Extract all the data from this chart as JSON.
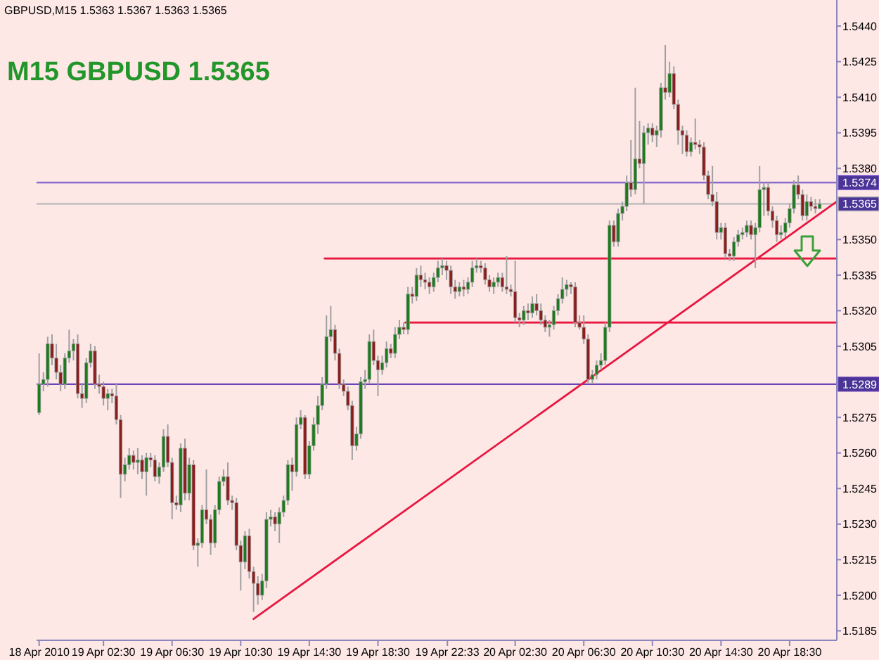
{
  "chart_data": {
    "type": "candlestick",
    "title": "M15 GBPUSD 1.5365",
    "subtitle": "GBPUSD,M15 1.5363 1.5367 1.5363 1.5365",
    "x": [
      "2010-04-18T22:45",
      "2010-04-18T23:00",
      "2010-04-18T23:15",
      "2010-04-18T23:30",
      "2010-04-18T23:45",
      "2010-04-19T00:00",
      "2010-04-19T00:15",
      "2010-04-19T00:30",
      "2010-04-19T00:45",
      "2010-04-19T01:00",
      "2010-04-19T01:15",
      "2010-04-19T01:30",
      "2010-04-19T01:45",
      "2010-04-19T02:00",
      "2010-04-19T02:15",
      "2010-04-19T02:30",
      "2010-04-19T02:45",
      "2010-04-19T03:00",
      "2010-04-19T03:15",
      "2010-04-19T03:30",
      "2010-04-19T03:45",
      "2010-04-19T04:00",
      "2010-04-19T04:15",
      "2010-04-19T04:30",
      "2010-04-19T04:45",
      "2010-04-19T05:00",
      "2010-04-19T05:15",
      "2010-04-19T05:30",
      "2010-04-19T05:45",
      "2010-04-19T06:00",
      "2010-04-19T06:15",
      "2010-04-19T06:30",
      "2010-04-19T06:45",
      "2010-04-19T07:00",
      "2010-04-19T07:15",
      "2010-04-19T07:30",
      "2010-04-19T07:45",
      "2010-04-19T08:00",
      "2010-04-19T08:15",
      "2010-04-19T08:30",
      "2010-04-19T08:45",
      "2010-04-19T09:00",
      "2010-04-19T09:15",
      "2010-04-19T09:30",
      "2010-04-19T09:45",
      "2010-04-19T10:00",
      "2010-04-19T10:15",
      "2010-04-19T10:30",
      "2010-04-19T10:45",
      "2010-04-19T11:00",
      "2010-04-19T11:15",
      "2010-04-19T11:30",
      "2010-04-19T11:45",
      "2010-04-19T12:00",
      "2010-04-19T12:15",
      "2010-04-19T12:30",
      "2010-04-19T12:45",
      "2010-04-19T13:00",
      "2010-04-19T13:15",
      "2010-04-19T13:30",
      "2010-04-19T13:45",
      "2010-04-19T14:00",
      "2010-04-19T14:15",
      "2010-04-19T14:30",
      "2010-04-19T14:45",
      "2010-04-19T15:00",
      "2010-04-19T15:15",
      "2010-04-19T15:30",
      "2010-04-19T15:45",
      "2010-04-19T16:00",
      "2010-04-19T16:15",
      "2010-04-19T16:30",
      "2010-04-19T16:45",
      "2010-04-19T17:00",
      "2010-04-19T17:15",
      "2010-04-19T17:30",
      "2010-04-19T17:45",
      "2010-04-19T18:00",
      "2010-04-19T18:15",
      "2010-04-19T18:30",
      "2010-04-19T18:45",
      "2010-04-19T19:00",
      "2010-04-19T19:15",
      "2010-04-19T19:30",
      "2010-04-19T19:45",
      "2010-04-19T20:00",
      "2010-04-19T20:15",
      "2010-04-19T20:30",
      "2010-04-19T20:45",
      "2010-04-19T21:00",
      "2010-04-19T21:15",
      "2010-04-19T21:30",
      "2010-04-19T21:45",
      "2010-04-19T22:00",
      "2010-04-19T22:15",
      "2010-04-19T22:30",
      "2010-04-19T22:45",
      "2010-04-19T23:00",
      "2010-04-19T23:15",
      "2010-04-19T23:30",
      "2010-04-19T23:45",
      "2010-04-20T00:00",
      "2010-04-20T00:15",
      "2010-04-20T00:30",
      "2010-04-20T00:45",
      "2010-04-20T01:00",
      "2010-04-20T01:15",
      "2010-04-20T01:30",
      "2010-04-20T01:45",
      "2010-04-20T02:00",
      "2010-04-20T02:15",
      "2010-04-20T02:30",
      "2010-04-20T02:45",
      "2010-04-20T03:00",
      "2010-04-20T03:15",
      "2010-04-20T03:30",
      "2010-04-20T03:45",
      "2010-04-20T04:00",
      "2010-04-20T04:15",
      "2010-04-20T04:30",
      "2010-04-20T04:45",
      "2010-04-20T05:00",
      "2010-04-20T05:15",
      "2010-04-20T05:30",
      "2010-04-20T05:45",
      "2010-04-20T06:00",
      "2010-04-20T06:15",
      "2010-04-20T06:30",
      "2010-04-20T06:45",
      "2010-04-20T07:00",
      "2010-04-20T07:15",
      "2010-04-20T07:30",
      "2010-04-20T07:45",
      "2010-04-20T08:00",
      "2010-04-20T08:15",
      "2010-04-20T08:30",
      "2010-04-20T08:45",
      "2010-04-20T09:00",
      "2010-04-20T09:15",
      "2010-04-20T09:30",
      "2010-04-20T09:45",
      "2010-04-20T10:00",
      "2010-04-20T10:15",
      "2010-04-20T10:30",
      "2010-04-20T10:45",
      "2010-04-20T11:00",
      "2010-04-20T11:15",
      "2010-04-20T11:30",
      "2010-04-20T11:45",
      "2010-04-20T12:00",
      "2010-04-20T12:15",
      "2010-04-20T12:30",
      "2010-04-20T12:45",
      "2010-04-20T13:00",
      "2010-04-20T13:15",
      "2010-04-20T13:30",
      "2010-04-20T13:45",
      "2010-04-20T14:00",
      "2010-04-20T14:15",
      "2010-04-20T14:30",
      "2010-04-20T14:45",
      "2010-04-20T15:00",
      "2010-04-20T15:15",
      "2010-04-20T15:30",
      "2010-04-20T15:45",
      "2010-04-20T16:00",
      "2010-04-20T16:15",
      "2010-04-20T16:30",
      "2010-04-20T16:45",
      "2010-04-20T17:00",
      "2010-04-20T17:15",
      "2010-04-20T17:30",
      "2010-04-20T17:45",
      "2010-04-20T18:00",
      "2010-04-20T18:15",
      "2010-04-20T18:30",
      "2010-04-20T18:45",
      "2010-04-20T19:00",
      "2010-04-20T19:15",
      "2010-04-20T19:30",
      "2010-04-20T19:45",
      "2010-04-20T20:00",
      "2010-04-20T20:15"
    ],
    "ohlc": [
      [
        1.5277,
        1.5302,
        1.5276,
        1.5289
      ],
      [
        1.5289,
        1.5294,
        1.5286,
        1.5291
      ],
      [
        1.5291,
        1.5309,
        1.5288,
        1.5306
      ],
      [
        1.5306,
        1.531,
        1.5297,
        1.53
      ],
      [
        1.53,
        1.5306,
        1.5291,
        1.5294
      ],
      [
        1.5294,
        1.5297,
        1.5286,
        1.5289
      ],
      [
        1.5289,
        1.5302,
        1.5287,
        1.53
      ],
      [
        1.53,
        1.5312,
        1.5298,
        1.5303
      ],
      [
        1.5303,
        1.5308,
        1.5299,
        1.5306
      ],
      [
        1.5306,
        1.531,
        1.5283,
        1.5285
      ],
      [
        1.5285,
        1.5289,
        1.5279,
        1.5283
      ],
      [
        1.5283,
        1.53,
        1.5281,
        1.5298
      ],
      [
        1.5298,
        1.5306,
        1.5296,
        1.5303
      ],
      [
        1.5303,
        1.5305,
        1.5287,
        1.5289
      ],
      [
        1.5289,
        1.5293,
        1.5285,
        1.5288
      ],
      [
        1.5288,
        1.529,
        1.528,
        1.5283
      ],
      [
        1.5283,
        1.5287,
        1.5278,
        1.5285
      ],
      [
        1.5285,
        1.5287,
        1.5281,
        1.5284
      ],
      [
        1.5284,
        1.5289,
        1.5272,
        1.5274
      ],
      [
        1.5274,
        1.5276,
        1.5241,
        1.5251
      ],
      [
        1.5251,
        1.5258,
        1.5248,
        1.5255
      ],
      [
        1.5255,
        1.5262,
        1.5253,
        1.5259
      ],
      [
        1.5259,
        1.5261,
        1.5253,
        1.5256
      ],
      [
        1.5256,
        1.5262,
        1.5251,
        1.5257
      ],
      [
        1.5257,
        1.5259,
        1.5249,
        1.5252
      ],
      [
        1.5252,
        1.526,
        1.5242,
        1.5258
      ],
      [
        1.5258,
        1.526,
        1.5254,
        1.5257
      ],
      [
        1.5257,
        1.5259,
        1.5248,
        1.525
      ],
      [
        1.525,
        1.5256,
        1.5247,
        1.5254
      ],
      [
        1.5254,
        1.527,
        1.5252,
        1.5267
      ],
      [
        1.5267,
        1.5272,
        1.5254,
        1.5256
      ],
      [
        1.5256,
        1.5258,
        1.5232,
        1.5239
      ],
      [
        1.5239,
        1.5242,
        1.5236,
        1.5238
      ],
      [
        1.5238,
        1.5264,
        1.5235,
        1.5262
      ],
      [
        1.5262,
        1.5266,
        1.524,
        1.5243
      ],
      [
        1.5243,
        1.5258,
        1.524,
        1.5255
      ],
      [
        1.5255,
        1.5257,
        1.5219,
        1.5221
      ],
      [
        1.5221,
        1.5224,
        1.5212,
        1.5222
      ],
      [
        1.5222,
        1.5238,
        1.522,
        1.5236
      ],
      [
        1.5236,
        1.5253,
        1.523,
        1.5232
      ],
      [
        1.5232,
        1.5234,
        1.5217,
        1.5222
      ],
      [
        1.5222,
        1.5238,
        1.522,
        1.5236
      ],
      [
        1.5236,
        1.525,
        1.5234,
        1.5248
      ],
      [
        1.5248,
        1.5253,
        1.5246,
        1.525
      ],
      [
        1.525,
        1.5256,
        1.5238,
        1.524
      ],
      [
        1.524,
        1.5242,
        1.5236,
        1.5239
      ],
      [
        1.5239,
        1.5241,
        1.5219,
        1.5221
      ],
      [
        1.5221,
        1.5223,
        1.5202,
        1.5214
      ],
      [
        1.5214,
        1.5227,
        1.5211,
        1.5225
      ],
      [
        1.5225,
        1.5228,
        1.5207,
        1.521
      ],
      [
        1.521,
        1.5212,
        1.5193,
        1.5205
      ],
      [
        1.5205,
        1.5208,
        1.5196,
        1.52
      ],
      [
        1.52,
        1.5209,
        1.5198,
        1.5206
      ],
      [
        1.5206,
        1.5235,
        1.5203,
        1.5232
      ],
      [
        1.5232,
        1.5236,
        1.5229,
        1.5233
      ],
      [
        1.5233,
        1.5235,
        1.5227,
        1.523
      ],
      [
        1.523,
        1.5237,
        1.5222,
        1.5235
      ],
      [
        1.5235,
        1.5242,
        1.5233,
        1.524
      ],
      [
        1.524,
        1.5257,
        1.5238,
        1.5255
      ],
      [
        1.5255,
        1.5258,
        1.5244,
        1.5252
      ],
      [
        1.5252,
        1.5275,
        1.525,
        1.5272
      ],
      [
        1.5272,
        1.5278,
        1.527,
        1.5275
      ],
      [
        1.5275,
        1.5276,
        1.5249,
        1.5251
      ],
      [
        1.5251,
        1.5265,
        1.5249,
        1.5263
      ],
      [
        1.5263,
        1.5275,
        1.5261,
        1.5272
      ],
      [
        1.5272,
        1.5284,
        1.5268,
        1.528
      ],
      [
        1.528,
        1.5292,
        1.5278,
        1.5289
      ],
      [
        1.5289,
        1.5318,
        1.5287,
        1.5309
      ],
      [
        1.5309,
        1.5322,
        1.5307,
        1.5312
      ],
      [
        1.5312,
        1.5314,
        1.5299,
        1.5302
      ],
      [
        1.5302,
        1.5304,
        1.5287,
        1.5289
      ],
      [
        1.5289,
        1.5291,
        1.5284,
        1.5286
      ],
      [
        1.5286,
        1.5288,
        1.5278,
        1.528
      ],
      [
        1.528,
        1.5282,
        1.5257,
        1.5263
      ],
      [
        1.5263,
        1.5271,
        1.5261,
        1.5268
      ],
      [
        1.5268,
        1.5292,
        1.5266,
        1.529
      ],
      [
        1.529,
        1.5295,
        1.5287,
        1.5291
      ],
      [
        1.5291,
        1.531,
        1.5289,
        1.5307
      ],
      [
        1.5307,
        1.5312,
        1.5297,
        1.5299
      ],
      [
        1.5299,
        1.5301,
        1.5284,
        1.5295
      ],
      [
        1.5295,
        1.5301,
        1.5293,
        1.5298
      ],
      [
        1.5298,
        1.5307,
        1.5296,
        1.5304
      ],
      [
        1.5304,
        1.5306,
        1.53,
        1.5302
      ],
      [
        1.5302,
        1.5313,
        1.53,
        1.531
      ],
      [
        1.531,
        1.5316,
        1.5308,
        1.5313
      ],
      [
        1.5313,
        1.5315,
        1.531,
        1.5312
      ],
      [
        1.5312,
        1.533,
        1.531,
        1.5327
      ],
      [
        1.5327,
        1.533,
        1.5323,
        1.5326
      ],
      [
        1.5326,
        1.5338,
        1.5324,
        1.5335
      ],
      [
        1.5335,
        1.5339,
        1.533,
        1.5333
      ],
      [
        1.5333,
        1.5336,
        1.5329,
        1.5332
      ],
      [
        1.5332,
        1.5334,
        1.5327,
        1.533
      ],
      [
        1.533,
        1.5336,
        1.5328,
        1.5334
      ],
      [
        1.5334,
        1.5341,
        1.5332,
        1.5338
      ],
      [
        1.5338,
        1.5342,
        1.5335,
        1.5339
      ],
      [
        1.5339,
        1.5341,
        1.5333,
        1.5337
      ],
      [
        1.5337,
        1.5339,
        1.5327,
        1.533
      ],
      [
        1.533,
        1.5333,
        1.5325,
        1.5328
      ],
      [
        1.5328,
        1.5332,
        1.5326,
        1.533
      ],
      [
        1.533,
        1.5333,
        1.5326,
        1.5329
      ],
      [
        1.5329,
        1.5334,
        1.5327,
        1.5332
      ],
      [
        1.5332,
        1.5341,
        1.533,
        1.5338
      ],
      [
        1.5338,
        1.5342,
        1.5336,
        1.5339
      ],
      [
        1.5339,
        1.5341,
        1.5336,
        1.5338
      ],
      [
        1.5338,
        1.534,
        1.5331,
        1.5333
      ],
      [
        1.5333,
        1.5335,
        1.5328,
        1.533
      ],
      [
        1.533,
        1.5334,
        1.5327,
        1.5332
      ],
      [
        1.5332,
        1.5336,
        1.533,
        1.5334
      ],
      [
        1.5334,
        1.5336,
        1.5328,
        1.533
      ],
      [
        1.533,
        1.5343,
        1.5327,
        1.5329
      ],
      [
        1.5329,
        1.5331,
        1.5326,
        1.5328
      ],
      [
        1.5328,
        1.5341,
        1.5315,
        1.5317
      ],
      [
        1.5317,
        1.5319,
        1.5313,
        1.5316
      ],
      [
        1.5316,
        1.5322,
        1.5314,
        1.532
      ],
      [
        1.532,
        1.5323,
        1.5316,
        1.5319
      ],
      [
        1.5319,
        1.5326,
        1.5317,
        1.5323
      ],
      [
        1.5323,
        1.5327,
        1.5318,
        1.532
      ],
      [
        1.532,
        1.5323,
        1.5314,
        1.5316
      ],
      [
        1.5316,
        1.5318,
        1.5311,
        1.5313
      ],
      [
        1.5313,
        1.5316,
        1.5309,
        1.5314
      ],
      [
        1.5314,
        1.5322,
        1.5312,
        1.532
      ],
      [
        1.532,
        1.5327,
        1.5318,
        1.5325
      ],
      [
        1.5325,
        1.5334,
        1.5323,
        1.5329
      ],
      [
        1.5329,
        1.5333,
        1.5326,
        1.5331
      ],
      [
        1.5331,
        1.5332,
        1.5327,
        1.533
      ],
      [
        1.533,
        1.5332,
        1.5313,
        1.5315
      ],
      [
        1.5315,
        1.5318,
        1.5312,
        1.5313
      ],
      [
        1.5313,
        1.5318,
        1.5306,
        1.5308
      ],
      [
        1.5308,
        1.531,
        1.5289,
        1.5291
      ],
      [
        1.5291,
        1.5295,
        1.5289,
        1.5293
      ],
      [
        1.5293,
        1.5299,
        1.5291,
        1.5297
      ],
      [
        1.5297,
        1.5302,
        1.5295,
        1.5299
      ],
      [
        1.5299,
        1.5315,
        1.5297,
        1.5313
      ],
      [
        1.5313,
        1.5358,
        1.5311,
        1.5356
      ],
      [
        1.5356,
        1.5358,
        1.5347,
        1.5349
      ],
      [
        1.5349,
        1.5363,
        1.5347,
        1.5361
      ],
      [
        1.5361,
        1.5366,
        1.5358,
        1.5364
      ],
      [
        1.5364,
        1.5377,
        1.5362,
        1.5374
      ],
      [
        1.5374,
        1.5392,
        1.5368,
        1.5371
      ],
      [
        1.5371,
        1.5414,
        1.5369,
        1.5384
      ],
      [
        1.5384,
        1.54,
        1.538,
        1.5382
      ],
      [
        1.5382,
        1.5398,
        1.5365,
        1.5395
      ],
      [
        1.5395,
        1.5399,
        1.539,
        1.5397
      ],
      [
        1.5397,
        1.5399,
        1.5391,
        1.5394
      ],
      [
        1.5394,
        1.5398,
        1.5389,
        1.5396
      ],
      [
        1.5396,
        1.5416,
        1.5393,
        1.5414
      ],
      [
        1.5414,
        1.5432,
        1.5409,
        1.5412
      ],
      [
        1.5412,
        1.5425,
        1.541,
        1.542
      ],
      [
        1.542,
        1.5423,
        1.5405,
        1.5407
      ],
      [
        1.5407,
        1.5409,
        1.539,
        1.5396
      ],
      [
        1.5396,
        1.5398,
        1.5386,
        1.5394
      ],
      [
        1.5394,
        1.5396,
        1.5385,
        1.5387
      ],
      [
        1.5387,
        1.5393,
        1.5385,
        1.5391
      ],
      [
        1.5391,
        1.5401,
        1.5388,
        1.539
      ],
      [
        1.539,
        1.5392,
        1.5386,
        1.5389
      ],
      [
        1.5389,
        1.5391,
        1.5375,
        1.5377
      ],
      [
        1.5377,
        1.5379,
        1.5367,
        1.5369
      ],
      [
        1.5369,
        1.5381,
        1.5364,
        1.5366
      ],
      [
        1.5366,
        1.537,
        1.535,
        1.5353
      ],
      [
        1.5353,
        1.5357,
        1.535,
        1.5355
      ],
      [
        1.5355,
        1.5357,
        1.5342,
        1.5344
      ],
      [
        1.5344,
        1.5346,
        1.5341,
        1.5343
      ],
      [
        1.5343,
        1.5351,
        1.5341,
        1.5349
      ],
      [
        1.5349,
        1.5354,
        1.5347,
        1.5352
      ],
      [
        1.5352,
        1.5355,
        1.535,
        1.5353
      ],
      [
        1.5353,
        1.5358,
        1.5351,
        1.5356
      ],
      [
        1.5356,
        1.5358,
        1.535,
        1.5352
      ],
      [
        1.5352,
        1.5357,
        1.5338,
        1.5355
      ],
      [
        1.5355,
        1.5381,
        1.5353,
        1.5371
      ],
      [
        1.5371,
        1.5374,
        1.536,
        1.5372
      ],
      [
        1.5372,
        1.5374,
        1.536,
        1.5362
      ],
      [
        1.5362,
        1.5364,
        1.5355,
        1.5358
      ],
      [
        1.5358,
        1.536,
        1.5349,
        1.5352
      ],
      [
        1.5352,
        1.5356,
        1.535,
        1.5353
      ],
      [
        1.5353,
        1.5359,
        1.5351,
        1.5357
      ],
      [
        1.5357,
        1.5365,
        1.5355,
        1.5363
      ],
      [
        1.5363,
        1.5375,
        1.5361,
        1.5373
      ],
      [
        1.5373,
        1.5377,
        1.5367,
        1.5369
      ],
      [
        1.5369,
        1.5371,
        1.5358,
        1.536
      ],
      [
        1.536,
        1.5369,
        1.5358,
        1.5366
      ],
      [
        1.5366,
        1.5368,
        1.5362,
        1.5364
      ],
      [
        1.5364,
        1.5367,
        1.5361,
        1.5363
      ],
      [
        1.5363,
        1.5367,
        1.5363,
        1.5365
      ]
    ],
    "series": [
      {
        "type": "line",
        "x": [
          "2010-04-19T11:15",
          "2010-04-20T21:15"
        ],
        "values": [
          1.519,
          1.5366
        ],
        "color": "#e8173f"
      },
      {
        "type": "line",
        "x": [
          "2010-04-19T15:24",
          "2010-04-20T21:15"
        ],
        "values": [
          1.5342,
          1.5342
        ],
        "color": "#e8173f"
      },
      {
        "type": "line",
        "x": [
          "2010-04-19T20:06",
          "2010-04-20T21:15"
        ],
        "values": [
          1.5315,
          1.5315
        ],
        "color": "#e8173f"
      }
    ],
    "ref_lines": [
      {
        "axis": "y",
        "value": 1.5374,
        "label": "1.5374",
        "color": "#8060cc"
      },
      {
        "axis": "y",
        "value": 1.5365,
        "label": "1.5365",
        "color": "#b8b8b8"
      },
      {
        "axis": "y",
        "value": 1.5289,
        "label": "1.5289",
        "color": "#6a44b8"
      }
    ],
    "xlim": [
      "2010-04-18T22:36",
      "2010-04-20T21:15"
    ],
    "ylim": [
      1.5181,
      1.5451
    ],
    "xticks": [
      {
        "value": "2010-04-18T22:45",
        "label": "18 Apr 2010"
      },
      {
        "value": "2010-04-19T02:30",
        "label": "19 Apr 02:30"
      },
      {
        "value": "2010-04-19T06:30",
        "label": "19 Apr 06:30"
      },
      {
        "value": "2010-04-19T10:30",
        "label": "19 Apr 10:30"
      },
      {
        "value": "2010-04-19T14:30",
        "label": "19 Apr 14:30"
      },
      {
        "value": "2010-04-19T18:30",
        "label": "19 Apr 18:30"
      },
      {
        "value": "2010-04-19T22:33",
        "label": "19 Apr 22:33"
      },
      {
        "value": "2010-04-20T02:30",
        "label": "20 Apr 02:30"
      },
      {
        "value": "2010-04-20T06:30",
        "label": "20 Apr 06:30"
      },
      {
        "value": "2010-04-20T10:30",
        "label": "20 Apr 10:30"
      },
      {
        "value": "2010-04-20T14:30",
        "label": "20 Apr 14:30"
      },
      {
        "value": "2010-04-20T18:30",
        "label": "20 Apr 18:30"
      }
    ],
    "yticks": [
      1.5185,
      {
        "value": 1.52,
        "label": "1.5200"
      },
      1.5215,
      {
        "value": 1.523,
        "label": "1.5230"
      },
      1.5245,
      {
        "value": 1.526,
        "label": "1.5260"
      },
      1.5275,
      1.5305,
      {
        "value": 1.532,
        "label": "1.5320"
      },
      1.5335,
      {
        "value": 1.535,
        "label": "1.5350"
      },
      {
        "value": 1.538,
        "label": "1.5380"
      },
      1.5395,
      {
        "value": 1.541,
        "label": "1.5410"
      },
      1.5425,
      {
        "value": 1.544,
        "label": "1.5440"
      }
    ]
  }
}
